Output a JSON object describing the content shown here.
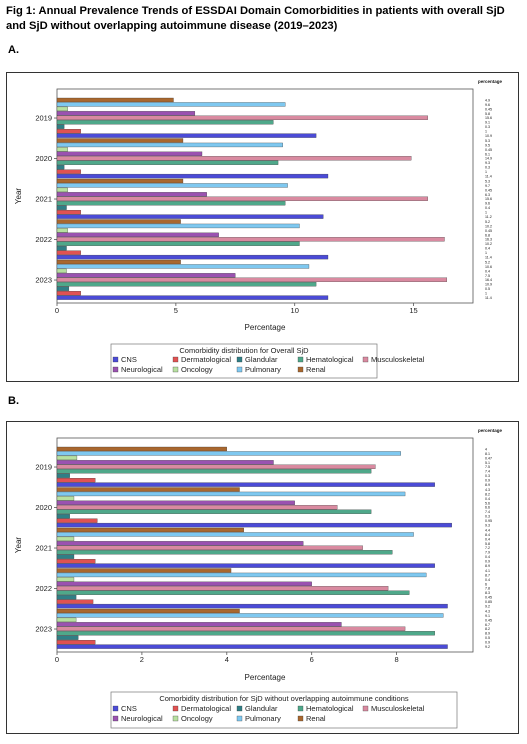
{
  "figure": {
    "title": "Fig 1: Annual Prevalence Trends of ESSDAI Domain Comorbidities in patients with overall SjD and SjD without overlapping autoimmune disease (2019–2023)"
  },
  "legend_items": [
    {
      "name": "CNS",
      "color": "#4b4bd6"
    },
    {
      "name": "Dermatological",
      "color": "#e05252"
    },
    {
      "name": "Glandular",
      "color": "#2f7f86"
    },
    {
      "name": "Hematological",
      "color": "#4fa88a"
    },
    {
      "name": "Musculoskeletal",
      "color": "#d98aa0"
    },
    {
      "name": "Neurological",
      "color": "#9a52b0"
    },
    {
      "name": "Oncology",
      "color": "#b7e0a0"
    },
    {
      "name": "Pulmonary",
      "color": "#7ec8f0"
    },
    {
      "name": "Renal",
      "color": "#a9672e"
    }
  ],
  "chart_data": [
    {
      "panel": "A.",
      "type": "bar",
      "orientation": "horizontal",
      "ylabel": "Year",
      "xlabel": "Percentage",
      "corner_label": "percentage",
      "xlim": [
        0,
        17.5
      ],
      "xticks": [
        0,
        5,
        10,
        15
      ],
      "categories": [
        "2019",
        "2020",
        "2021",
        "2022",
        "2023"
      ],
      "legend_title": "Comorbidity distribution for Overall SjD",
      "legend_position": "bottom-center",
      "series": [
        {
          "name": "Renal",
          "values": [
            4.9,
            5.3,
            5.3,
            5.2,
            5.2
          ]
        },
        {
          "name": "Pulmonary",
          "values": [
            9.6,
            9.5,
            9.7,
            10.2,
            10.6
          ]
        },
        {
          "name": "Oncology",
          "values": [
            0.45,
            0.45,
            0.45,
            0.45,
            0.4
          ]
        },
        {
          "name": "Neurological",
          "values": [
            5.8,
            6.1,
            6.3,
            6.8,
            7.5
          ]
        },
        {
          "name": "Musculoskeletal",
          "values": [
            15.6,
            14.9,
            15.6,
            16.3,
            16.4
          ]
        },
        {
          "name": "Hematological",
          "values": [
            9.1,
            9.3,
            9.6,
            10.2,
            10.9
          ]
        },
        {
          "name": "Glandular",
          "values": [
            0.3,
            0.3,
            0.4,
            0.4,
            0.5
          ]
        },
        {
          "name": "Dermatological",
          "values": [
            1.0,
            1.0,
            1.0,
            1.0,
            1.0
          ]
        },
        {
          "name": "CNS",
          "values": [
            10.9,
            11.4,
            11.2,
            11.4,
            11.4
          ]
        }
      ]
    },
    {
      "panel": "B.",
      "type": "bar",
      "orientation": "horizontal",
      "ylabel": "Year",
      "xlabel": "Percentage",
      "corner_label": "percentage",
      "xlim": [
        0,
        9.8
      ],
      "xticks": [
        0,
        2,
        4,
        6,
        8
      ],
      "categories": [
        "2019",
        "2020",
        "2021",
        "2022",
        "2023"
      ],
      "legend_title": "Comorbidity distribution for SjD without overlapping autoimmune conditions",
      "legend_position": "bottom-center",
      "series": [
        {
          "name": "Renal",
          "values": [
            4.0,
            4.3,
            4.4,
            4.1,
            4.3
          ]
        },
        {
          "name": "Pulmonary",
          "values": [
            8.1,
            8.2,
            8.4,
            8.7,
            9.1
          ]
        },
        {
          "name": "Oncology",
          "values": [
            0.47,
            0.4,
            0.4,
            0.4,
            0.45
          ]
        },
        {
          "name": "Neurological",
          "values": [
            5.1,
            5.6,
            5.8,
            6.0,
            6.7
          ]
        },
        {
          "name": "Musculoskeletal",
          "values": [
            7.5,
            6.6,
            7.2,
            7.8,
            8.2
          ]
        },
        {
          "name": "Hematological",
          "values": [
            7.4,
            7.4,
            7.9,
            8.3,
            8.9
          ]
        },
        {
          "name": "Glandular",
          "values": [
            0.3,
            0.3,
            0.4,
            0.45,
            0.5
          ]
        },
        {
          "name": "Dermatological",
          "values": [
            0.9,
            0.95,
            0.9,
            0.85,
            0.9
          ]
        },
        {
          "name": "CNS",
          "values": [
            8.9,
            9.3,
            8.9,
            9.2,
            9.2
          ]
        }
      ]
    }
  ]
}
